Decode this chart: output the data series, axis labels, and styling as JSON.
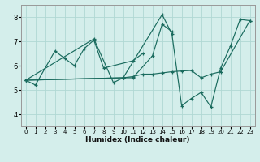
{
  "bg_color": "#d4eeeb",
  "grid_color": "#b0d8d4",
  "line_color": "#1a6b5e",
  "xlabel": "Humidex (Indice chaleur)",
  "xlim": [
    -0.5,
    23.5
  ],
  "ylim": [
    3.5,
    8.5
  ],
  "yticks": [
    4,
    5,
    6,
    7,
    8
  ],
  "xticks": [
    0,
    1,
    2,
    3,
    4,
    5,
    6,
    7,
    8,
    9,
    10,
    11,
    12,
    13,
    14,
    15,
    16,
    17,
    18,
    19,
    20,
    21,
    22,
    23
  ],
  "series": [
    {
      "x": [
        0,
        1,
        3,
        4,
        5,
        6,
        7,
        8,
        11,
        12
      ],
      "y": [
        5.4,
        5.2,
        6.6,
        6.3,
        6.0,
        6.7,
        7.05,
        5.9,
        6.2,
        6.5
      ]
    },
    {
      "x": [
        0,
        7,
        9,
        10,
        11,
        13,
        14,
        15
      ],
      "y": [
        5.4,
        7.1,
        5.3,
        5.5,
        5.5,
        6.4,
        7.7,
        7.4
      ]
    },
    {
      "x": [
        0,
        10,
        11,
        12,
        13,
        14,
        15,
        16,
        17,
        18,
        19,
        20,
        23
      ],
      "y": [
        5.4,
        5.5,
        5.55,
        5.65,
        5.65,
        5.7,
        5.75,
        5.78,
        5.8,
        5.5,
        5.65,
        5.75,
        7.85
      ]
    },
    {
      "x": [
        0,
        10,
        14,
        15,
        16,
        17,
        18,
        19,
        20,
        21,
        22,
        23
      ],
      "y": [
        5.4,
        5.5,
        8.1,
        7.3,
        4.35,
        4.65,
        4.9,
        4.3,
        5.9,
        6.8,
        7.9,
        7.85
      ]
    }
  ]
}
